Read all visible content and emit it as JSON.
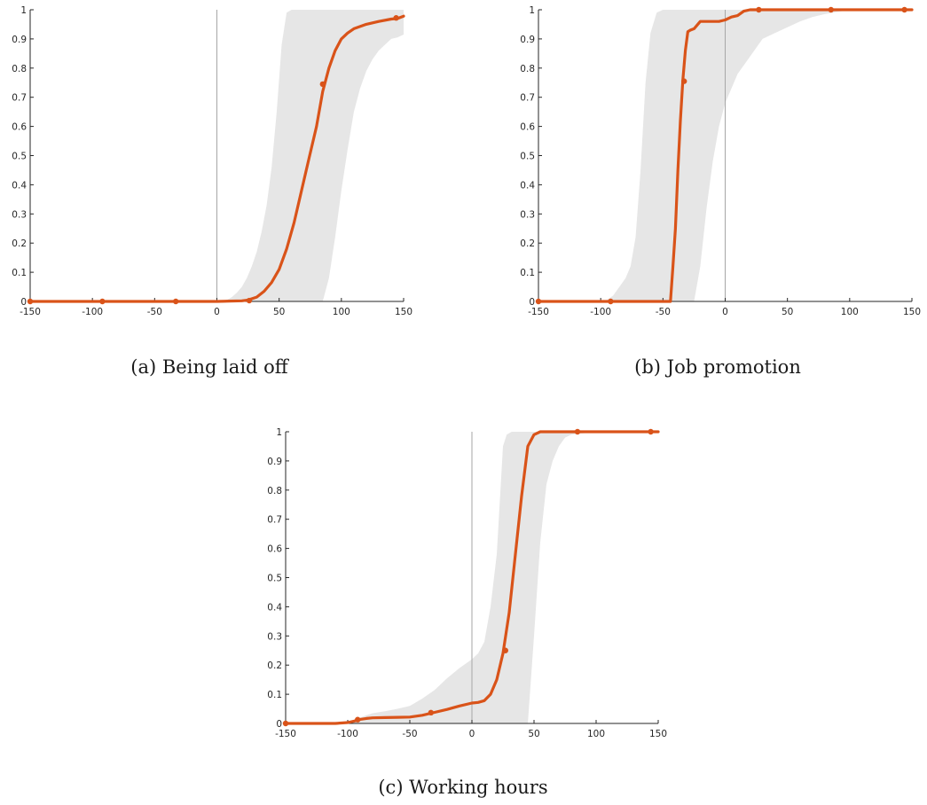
{
  "colors": {
    "curve": "#d95319",
    "band": "#e6e6e6",
    "zero_line": "#a6a6a6"
  },
  "chart_data": [
    {
      "type": "line",
      "caption": "(a) Being laid off",
      "xlim": [
        -150,
        150
      ],
      "ylim": [
        0,
        1
      ],
      "xticks": [
        -150,
        -100,
        -50,
        0,
        50,
        100,
        150
      ],
      "yticks": [
        0,
        0.1,
        0.2,
        0.3,
        0.4,
        0.5,
        0.6,
        0.7,
        0.8,
        0.9,
        1
      ],
      "series": [
        {
          "type": "line",
          "x": [
            -150,
            -100,
            -50,
            0,
            20,
            25,
            32,
            38,
            44,
            50,
            56,
            62,
            68,
            74,
            80,
            85,
            90,
            95,
            100,
            105,
            110,
            120,
            130,
            140,
            145,
            150
          ],
          "y": [
            0,
            0,
            0,
            0,
            0.002,
            0.005,
            0.015,
            0.035,
            0.065,
            0.11,
            0.18,
            0.27,
            0.38,
            0.49,
            0.6,
            0.72,
            0.8,
            0.86,
            0.9,
            0.92,
            0.935,
            0.95,
            0.96,
            0.968,
            0.97,
            0.978
          ],
          "markers_x": [
            -150,
            -92,
            -33,
            26,
            85,
            144
          ],
          "markers_y": [
            0,
            0,
            0,
            0.003,
            0.745,
            0.972
          ]
        }
      ],
      "band": {
        "x": [
          -150,
          0,
          8,
          12,
          16,
          20,
          24,
          28,
          32,
          36,
          40,
          44,
          48,
          52,
          56,
          60,
          65,
          70,
          75,
          80,
          85,
          90,
          95,
          100,
          105,
          110,
          115,
          120,
          125,
          130,
          135,
          140,
          145,
          150
        ],
        "upper": [
          0,
          0,
          0.005,
          0.015,
          0.03,
          0.05,
          0.08,
          0.12,
          0.17,
          0.24,
          0.33,
          0.46,
          0.65,
          0.88,
          0.99,
          1,
          1,
          1,
          1,
          1,
          1,
          1,
          1,
          1,
          1,
          1,
          1,
          1,
          1,
          1,
          1,
          1,
          1,
          1
        ],
        "lower": [
          0,
          0,
          0,
          0,
          0,
          0,
          0,
          0,
          0,
          0,
          0,
          0,
          0,
          0,
          0,
          0,
          0,
          0,
          0,
          0,
          0,
          0.08,
          0.22,
          0.38,
          0.52,
          0.65,
          0.73,
          0.79,
          0.83,
          0.86,
          0.88,
          0.9,
          0.905,
          0.915
        ]
      }
    },
    {
      "type": "line",
      "caption": "(b) Job promotion",
      "xlim": [
        -150,
        150
      ],
      "ylim": [
        0,
        1
      ],
      "xticks": [
        -150,
        -100,
        -50,
        0,
        50,
        100,
        150
      ],
      "yticks": [
        0,
        0.1,
        0.2,
        0.3,
        0.4,
        0.5,
        0.6,
        0.7,
        0.8,
        0.9,
        1
      ],
      "series": [
        {
          "type": "line",
          "x": [
            -150,
            -100,
            -50,
            -44,
            -42,
            -40,
            -38,
            -36,
            -34,
            -32,
            -30,
            -28,
            -25,
            -20,
            -15,
            -10,
            -5,
            0,
            5,
            10,
            15,
            20,
            25,
            50,
            100,
            150
          ],
          "y": [
            0,
            0,
            0,
            0,
            0.12,
            0.25,
            0.45,
            0.62,
            0.76,
            0.86,
            0.925,
            0.93,
            0.935,
            0.96,
            0.96,
            0.96,
            0.96,
            0.965,
            0.975,
            0.98,
            0.995,
            1,
            1,
            1,
            1,
            1
          ],
          "markers_x": [
            -150,
            -92,
            -33,
            27,
            85,
            144
          ],
          "markers_y": [
            0,
            0,
            0.755,
            1,
            1,
            1
          ]
        }
      ],
      "band": {
        "x": [
          -150,
          -100,
          -95,
          -90,
          -85,
          -80,
          -76,
          -72,
          -68,
          -64,
          -60,
          -55,
          -50,
          -45,
          -40,
          -35,
          -30,
          -25,
          -20,
          -15,
          -10,
          -5,
          0,
          10,
          20,
          30,
          40,
          50,
          60,
          70,
          80,
          100,
          150
        ],
        "upper": [
          0,
          0,
          0.005,
          0.02,
          0.05,
          0.08,
          0.12,
          0.22,
          0.45,
          0.75,
          0.92,
          0.99,
          1,
          1,
          1,
          1,
          1,
          1,
          1,
          1,
          1,
          1,
          1,
          1,
          1,
          1,
          1,
          1,
          1,
          1,
          1,
          1,
          1
        ],
        "lower": [
          0,
          0,
          0,
          0,
          0,
          0,
          0,
          0,
          0,
          0,
          0,
          0,
          0,
          0,
          0,
          0,
          0,
          0,
          0.12,
          0.32,
          0.48,
          0.6,
          0.68,
          0.78,
          0.84,
          0.9,
          0.92,
          0.94,
          0.96,
          0.975,
          0.985,
          1,
          1
        ]
      }
    },
    {
      "type": "line",
      "caption": "(c) Working hours",
      "xlim": [
        -150,
        150
      ],
      "ylim": [
        0,
        1
      ],
      "xticks": [
        -150,
        -100,
        -50,
        0,
        50,
        100,
        150
      ],
      "yticks": [
        0,
        0.1,
        0.2,
        0.3,
        0.4,
        0.5,
        0.6,
        0.7,
        0.8,
        0.9,
        1
      ],
      "series": [
        {
          "type": "line",
          "x": [
            -150,
            -110,
            -100,
            -95,
            -90,
            -85,
            -80,
            -70,
            -60,
            -50,
            -40,
            -30,
            -20,
            -10,
            0,
            5,
            10,
            15,
            20,
            25,
            30,
            35,
            40,
            45,
            50,
            55,
            60,
            85,
            144,
            150
          ],
          "y": [
            0,
            0,
            0.003,
            0.008,
            0.014,
            0.017,
            0.019,
            0.02,
            0.021,
            0.022,
            0.028,
            0.038,
            0.048,
            0.06,
            0.07,
            0.072,
            0.078,
            0.1,
            0.15,
            0.24,
            0.38,
            0.58,
            0.78,
            0.95,
            0.99,
            1,
            1,
            1,
            1,
            1
          ],
          "markers_x": [
            -150,
            -92,
            -33,
            27,
            85,
            144
          ],
          "markers_y": [
            0,
            0.013,
            0.037,
            0.25,
            1,
            1
          ]
        }
      ],
      "band": {
        "x": [
          -150,
          -110,
          -100,
          -95,
          -90,
          -85,
          -80,
          -70,
          -60,
          -50,
          -40,
          -30,
          -20,
          -10,
          0,
          5,
          10,
          15,
          20,
          25,
          28,
          32,
          35,
          40,
          45,
          50,
          55,
          60,
          65,
          70,
          75,
          80,
          100,
          150
        ],
        "upper": [
          0,
          0,
          0.005,
          0.012,
          0.02,
          0.028,
          0.035,
          0.042,
          0.05,
          0.06,
          0.085,
          0.115,
          0.155,
          0.19,
          0.22,
          0.24,
          0.28,
          0.4,
          0.58,
          0.95,
          0.99,
          1,
          1,
          1,
          1,
          1,
          1,
          1,
          1,
          1,
          1,
          1,
          1,
          1
        ],
        "lower": [
          0,
          0,
          0,
          0,
          0,
          0,
          0,
          0,
          0,
          0,
          0,
          0,
          0,
          0,
          0,
          0,
          0,
          0,
          0,
          0,
          0,
          0,
          0,
          0,
          0,
          0.3,
          0.62,
          0.82,
          0.9,
          0.95,
          0.98,
          0.99,
          1,
          1
        ]
      }
    }
  ]
}
